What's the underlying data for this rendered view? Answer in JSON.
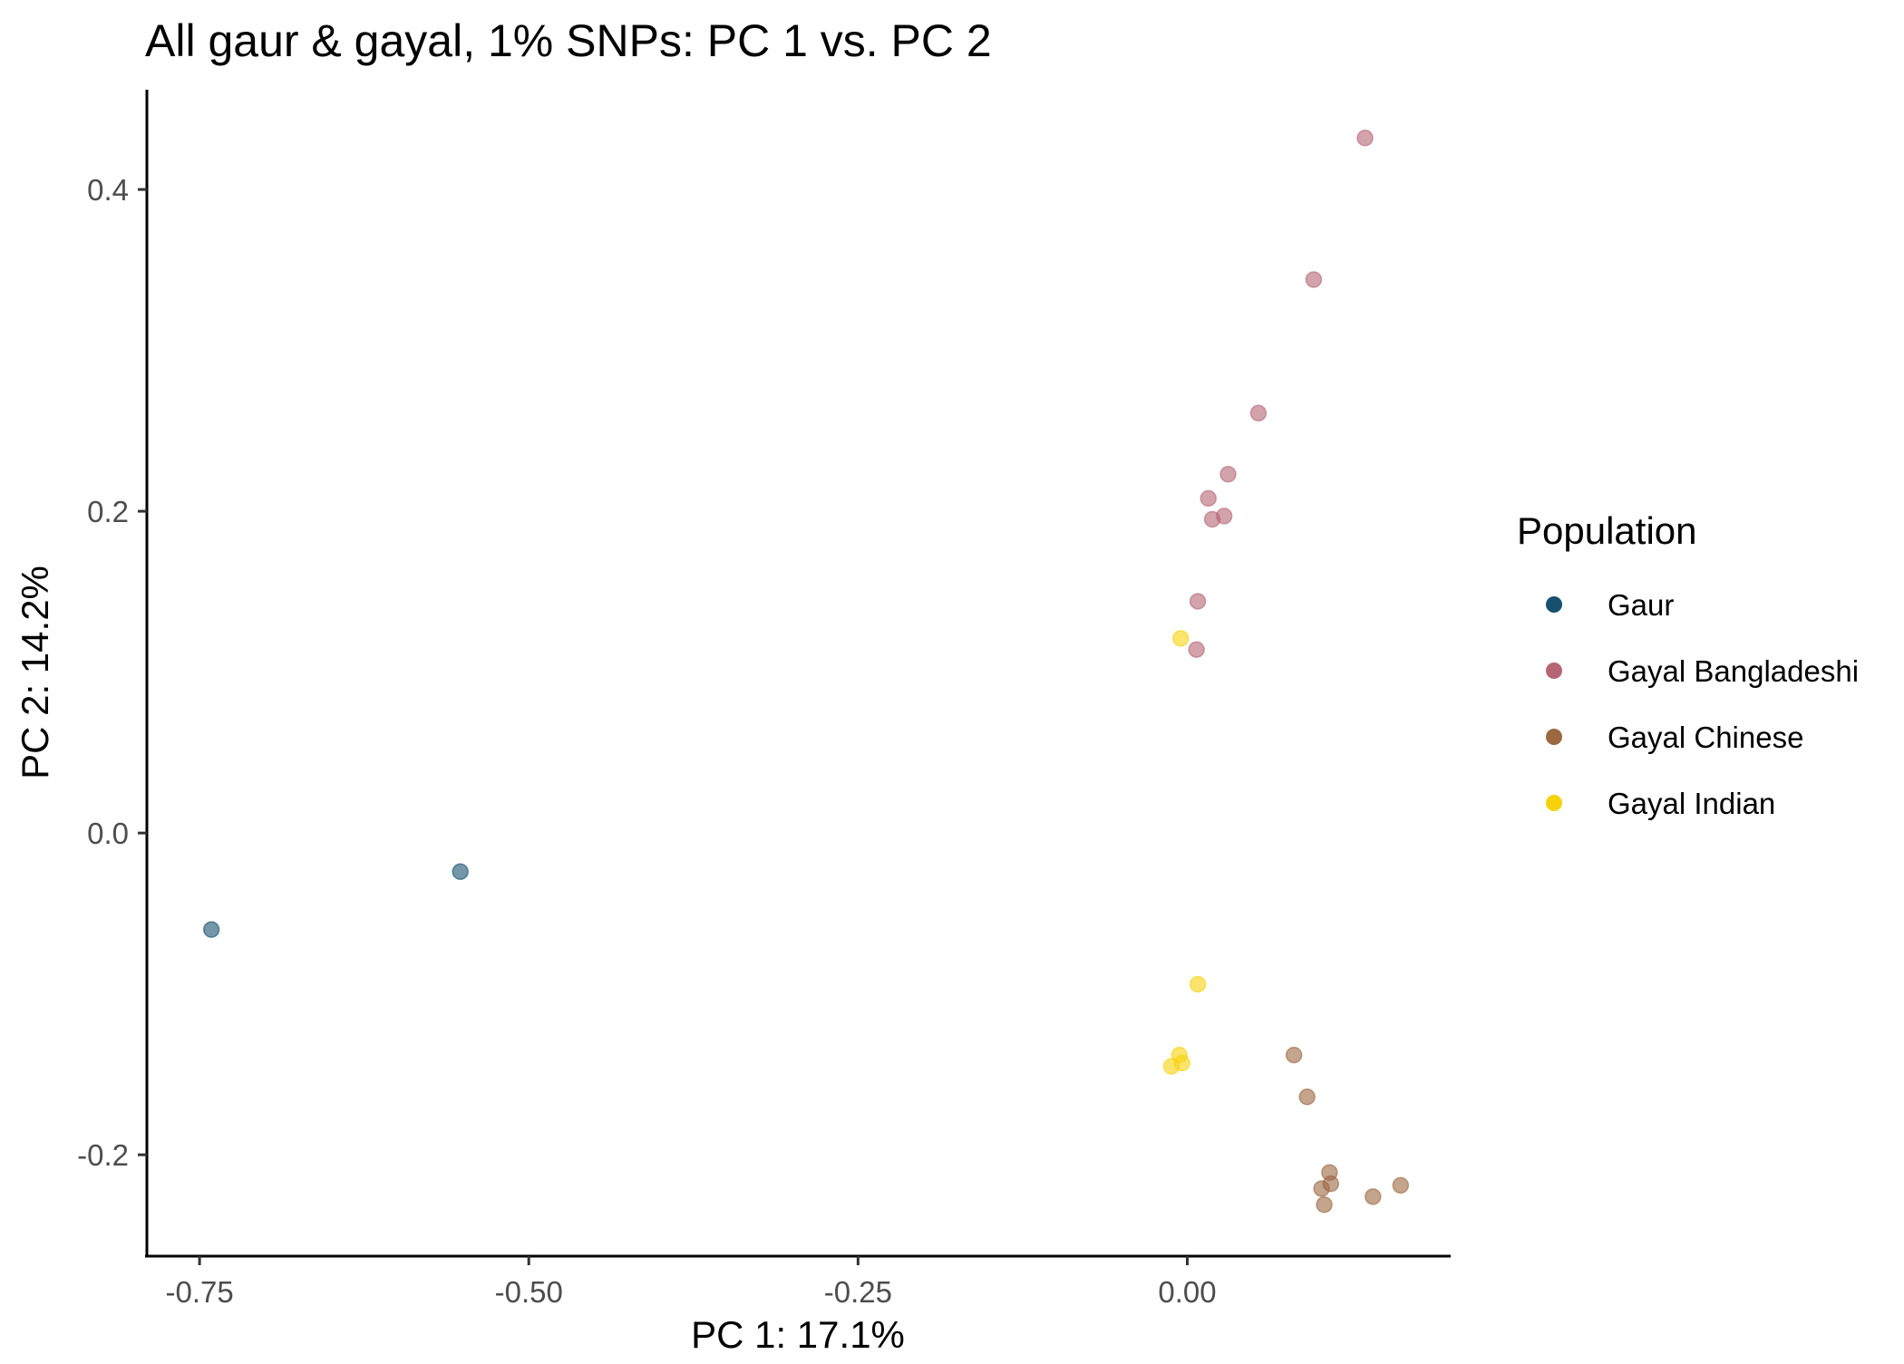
{
  "chart_data": {
    "type": "scatter",
    "title": "All gaur & gayal, 1% SNPs: PC 1 vs. PC 2",
    "xlabel": "PC 1: 17.1%",
    "ylabel": "PC 2: 14.2%",
    "xlim": [
      -0.79,
      0.2
    ],
    "ylim": [
      -0.263,
      0.462
    ],
    "x_ticks": [
      -0.75,
      -0.5,
      -0.25,
      0.0
    ],
    "x_tick_labels": [
      "-0.75",
      "-0.50",
      "-0.25",
      "0.00"
    ],
    "y_ticks": [
      -0.2,
      0.0,
      0.2,
      0.4
    ],
    "y_tick_labels": [
      "-0.2",
      "0.0",
      "0.2",
      "0.4"
    ],
    "grid": false,
    "legend_position": "right",
    "legend_title": "Population",
    "point_alpha": 0.6,
    "series": [
      {
        "name": "Gaur",
        "color": "#16506E",
        "points": [
          [
            -0.741,
            -0.06
          ],
          [
            -0.552,
            -0.024
          ]
        ]
      },
      {
        "name": "Gayal Bangladeshi",
        "color": "#B56575",
        "points": [
          [
            0.135,
            0.432
          ],
          [
            0.096,
            0.344
          ],
          [
            0.054,
            0.261
          ],
          [
            0.031,
            0.223
          ],
          [
            0.016,
            0.208
          ],
          [
            0.028,
            0.197
          ],
          [
            0.019,
            0.195
          ],
          [
            0.008,
            0.144
          ],
          [
            0.007,
            0.114
          ]
        ]
      },
      {
        "name": "Gayal Chinese",
        "color": "#9B6840",
        "points": [
          [
            0.081,
            -0.138
          ],
          [
            0.091,
            -0.164
          ],
          [
            0.108,
            -0.211
          ],
          [
            0.109,
            -0.218
          ],
          [
            0.102,
            -0.221
          ],
          [
            0.104,
            -0.231
          ],
          [
            0.141,
            -0.226
          ],
          [
            0.162,
            -0.219
          ]
        ]
      },
      {
        "name": "Gayal Indian",
        "color": "#F6D20D",
        "points": [
          [
            -0.005,
            0.121
          ],
          [
            0.008,
            -0.094
          ],
          [
            -0.006,
            -0.138
          ],
          [
            -0.004,
            -0.143
          ],
          [
            -0.012,
            -0.145
          ]
        ]
      }
    ]
  }
}
